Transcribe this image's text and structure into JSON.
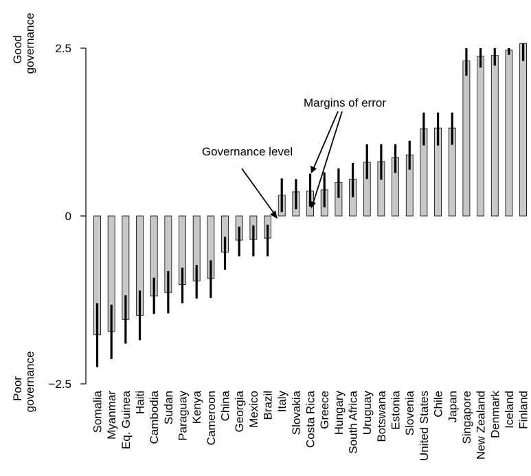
{
  "chart_data": {
    "type": "bar",
    "title": "",
    "xlabel": "",
    "ylabel_top": [
      "Good",
      "governance"
    ],
    "ylabel_bottom": [
      "Poor",
      "governance"
    ],
    "ylim": [
      -2.5,
      2.5
    ],
    "yticks": [
      {
        "value": 2.5,
        "label": "2.5"
      },
      {
        "value": 0,
        "label": "0"
      },
      {
        "value": -2.5,
        "label": "−2.5"
      }
    ],
    "grid": false,
    "bar_color": "#c8c8c8",
    "error_color": "#000000",
    "categories": [
      "Somalia",
      "Myanmar",
      "Eq. Guinea",
      "Haiti",
      "Cambodia",
      "Sudan",
      "Paraguay",
      "Kenya",
      "Cameroon",
      "China",
      "Georgia",
      "Mexico",
      "Brazil",
      "Italy",
      "Slovakia",
      "Costa Rica",
      "Greece",
      "Hungary",
      "South Africa",
      "Uruguay",
      "Botswana",
      "Estonia",
      "Slovenia",
      "United States",
      "Chile",
      "Japan",
      "Singapore",
      "New Zealand",
      "Denmark",
      "Iceland",
      "Finland"
    ],
    "series": [
      {
        "values": [
          -1.77,
          -1.72,
          -1.54,
          -1.48,
          -1.19,
          -1.14,
          -1.02,
          -0.97,
          -0.93,
          -0.54,
          -0.36,
          -0.35,
          -0.33,
          0.31,
          0.36,
          0.37,
          0.39,
          0.5,
          0.55,
          0.8,
          0.81,
          0.87,
          0.91,
          1.3,
          1.31,
          1.31,
          2.31,
          2.38,
          2.39,
          2.47,
          2.57
        ],
        "error_low": [
          -2.25,
          -2.13,
          -1.9,
          -1.85,
          -1.46,
          -1.45,
          -1.3,
          -1.23,
          -1.22,
          -0.8,
          -0.6,
          -0.6,
          -0.6,
          0.06,
          0.1,
          0.14,
          0.13,
          0.27,
          0.28,
          0.55,
          0.54,
          0.64,
          0.69,
          1.05,
          1.05,
          1.06,
          2.09,
          2.21,
          2.24,
          2.4,
          2.31
        ],
        "error_high": [
          -1.3,
          -1.32,
          -1.18,
          -1.11,
          -0.92,
          -0.82,
          -0.77,
          -0.73,
          -0.66,
          -0.31,
          -0.16,
          -0.14,
          -0.13,
          0.56,
          0.55,
          0.63,
          0.65,
          0.71,
          0.79,
          1.07,
          1.07,
          1.07,
          1.12,
          1.54,
          1.54,
          1.54,
          2.5,
          2.5,
          2.5,
          2.5,
          2.57
        ]
      }
    ],
    "annotations": [
      {
        "text": "Margins of error",
        "target_categories": [
          "Costa Rica"
        ],
        "target": "error_ends"
      },
      {
        "text": "Governance level",
        "target_categories": [
          "Italy"
        ],
        "target": "bar_value"
      }
    ]
  }
}
